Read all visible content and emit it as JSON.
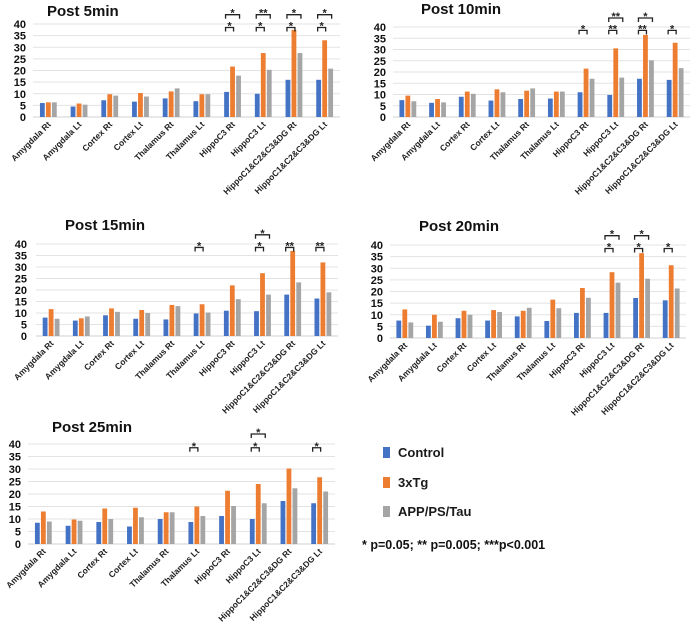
{
  "legend": [
    {
      "name": "Control",
      "color": "#4472C4"
    },
    {
      "name": "3xTg",
      "color": "#ED7D31"
    },
    {
      "name": "APP/PS/Tau",
      "color": "#A5A5A5"
    }
  ],
  "footnote": "*  p=0.05; ** p=0.005; ***p<0.001",
  "chart_data": [
    {
      "type": "bar",
      "title": "Post 5min",
      "ylim": [
        0,
        40
      ],
      "yticks": [
        0,
        5,
        10,
        15,
        20,
        25,
        30,
        35,
        40
      ],
      "grid": true,
      "categories": [
        "Amygdala Rt",
        "Amygdala Lt",
        "Cortex Rt",
        "Cortex Lt",
        "Thalamus Rt",
        "Thalamus Lt",
        "HippoC3 Rt",
        "HippoC3 Lt",
        "HippoC1&C2&C3&DG Rt",
        "HippoC1&C2&C3&DG Lt"
      ],
      "series": [
        {
          "name": "Control",
          "values": [
            6,
            4.5,
            7.2,
            6.6,
            8,
            6.8,
            10.8,
            10,
            16,
            16
          ]
        },
        {
          "name": "3xTg",
          "values": [
            6.3,
            5.8,
            9.8,
            10.3,
            11,
            9.8,
            21.7,
            27.5,
            37.5,
            33
          ]
        },
        {
          "name": "APP/PS/Tau",
          "values": [
            6.3,
            5.3,
            9.2,
            8.8,
            12.3,
            9.8,
            17.8,
            20.3,
            27.5,
            20.8
          ]
        }
      ],
      "significance": [
        {
          "category": 6,
          "pair": "Control-3xTg",
          "label": "*"
        },
        {
          "category": 6,
          "pair": "Control-APP/PS/Tau",
          "label": "*"
        },
        {
          "category": 7,
          "pair": "Control-3xTg",
          "label": "*"
        },
        {
          "category": 7,
          "pair": "Control-APP/PS/Tau",
          "label": "**"
        },
        {
          "category": 8,
          "pair": "Control-3xTg",
          "label": "*"
        },
        {
          "category": 8,
          "pair": "Control-APP/PS/Tau",
          "label": "*"
        },
        {
          "category": 9,
          "pair": "Control-3xTg",
          "label": "*"
        },
        {
          "category": 9,
          "pair": "Control-APP/PS/Tau",
          "label": "*"
        }
      ]
    },
    {
      "type": "bar",
      "title": "Post 10min",
      "ylim": [
        0,
        40
      ],
      "yticks": [
        0,
        5,
        10,
        15,
        20,
        25,
        30,
        35,
        40
      ],
      "grid": true,
      "categories": [
        "Amygdala Rt",
        "Amygdala Lt",
        "Cortex Rt",
        "Cortex Lt",
        "Thalamus Rt",
        "Thalamus Lt",
        "HippoC3 Rt",
        "HippoC3 Lt",
        "HippoC1&C2&C3&DG Rt",
        "HippoC1&C2&C3&DG Lt"
      ],
      "series": [
        {
          "name": "Control",
          "values": [
            7.5,
            6.3,
            9,
            7.3,
            8,
            8.2,
            11,
            9.8,
            17,
            16.5
          ]
        },
        {
          "name": "3xTg",
          "values": [
            9.5,
            8,
            11.3,
            12.3,
            11.7,
            11.3,
            21.5,
            30.5,
            36.5,
            33
          ]
        },
        {
          "name": "APP/PS/Tau",
          "values": [
            7,
            6.5,
            10.3,
            11,
            12.7,
            11.3,
            17,
            17.5,
            25.2,
            21.7
          ]
        }
      ],
      "significance": [
        {
          "category": 6,
          "pair": "Control-3xTg",
          "label": "*"
        },
        {
          "category": 7,
          "pair": "Control-3xTg",
          "label": "**"
        },
        {
          "category": 7,
          "pair": "Control-APP/PS/Tau",
          "label": "**"
        },
        {
          "category": 8,
          "pair": "Control-3xTg",
          "label": "**"
        },
        {
          "category": 8,
          "pair": "Control-APP/PS/Tau",
          "label": "*"
        },
        {
          "category": 9,
          "pair": "Control-3xTg",
          "label": "*"
        }
      ]
    },
    {
      "type": "bar",
      "title": "Post 15min",
      "ylim": [
        0,
        40
      ],
      "yticks": [
        0,
        5,
        10,
        15,
        20,
        25,
        30,
        35,
        40
      ],
      "grid": true,
      "categories": [
        "Amygdala Rt",
        "Amygdala Lt",
        "Cortex Rt",
        "Cortex Lt",
        "Thalamus Rt",
        "Thalamus Lt",
        "HippoC3 Rt",
        "HippoC3 Lt",
        "HippoC1&C2&C3&DG Rt",
        "HippoC1&C2&C3&DG Lt"
      ],
      "series": [
        {
          "name": "Control",
          "values": [
            8,
            6.7,
            9,
            7.5,
            7.2,
            9.8,
            11,
            10.8,
            18,
            16.3
          ]
        },
        {
          "name": "3xTg",
          "values": [
            11.7,
            7.7,
            12,
            11.3,
            13.5,
            13.8,
            22,
            27.3,
            37,
            32
          ]
        },
        {
          "name": "APP/PS/Tau",
          "values": [
            7.5,
            8.5,
            10.5,
            10,
            13,
            10.2,
            16,
            18,
            23.3,
            19
          ]
        }
      ],
      "significance": [
        {
          "category": 5,
          "pair": "Control-3xTg",
          "label": "*"
        },
        {
          "category": 7,
          "pair": "Control-3xTg",
          "label": "*"
        },
        {
          "category": 7,
          "pair": "Control-APP/PS/Tau",
          "label": "*"
        },
        {
          "category": 8,
          "pair": "Control-3xTg",
          "label": "**"
        },
        {
          "category": 9,
          "pair": "Control-3xTg",
          "label": "**"
        }
      ]
    },
    {
      "type": "bar",
      "title": "Post 20min",
      "ylim": [
        0,
        40
      ],
      "yticks": [
        0,
        5,
        10,
        15,
        20,
        25,
        30,
        35,
        40
      ],
      "grid": true,
      "categories": [
        "Amygdala Rt",
        "Amygdala Lt",
        "Cortex Rt",
        "Cortex Lt",
        "Thalamus Rt",
        "Thalamus Lt",
        "HippoC3 Rt",
        "HippoC3 Lt",
        "HippoC1&C2&C3&DG Rt",
        "HippoC1&C2&C3&DG Lt"
      ],
      "series": [
        {
          "name": "Control",
          "values": [
            7.5,
            5.3,
            8.5,
            7.5,
            9.3,
            7.3,
            10.8,
            10.8,
            17.2,
            16.2
          ]
        },
        {
          "name": "3xTg",
          "values": [
            12.3,
            10,
            11.7,
            12,
            11.7,
            16.5,
            21.5,
            28.3,
            36.5,
            31.3
          ]
        },
        {
          "name": "APP/PS/Tau",
          "values": [
            6.7,
            7,
            10,
            11.2,
            13,
            12.8,
            17.3,
            23.8,
            25.5,
            21.3
          ]
        }
      ],
      "significance": [
        {
          "category": 7,
          "pair": "Control-3xTg",
          "label": "*"
        },
        {
          "category": 7,
          "pair": "Control-APP/PS/Tau",
          "label": "*"
        },
        {
          "category": 8,
          "pair": "Control-3xTg",
          "label": "*"
        },
        {
          "category": 8,
          "pair": "Control-APP/PS/Tau",
          "label": "*"
        },
        {
          "category": 9,
          "pair": "Control-3xTg",
          "label": "*"
        }
      ]
    },
    {
      "type": "bar",
      "title": "Post 25min",
      "ylim": [
        0,
        40
      ],
      "yticks": [
        0,
        5,
        10,
        15,
        20,
        25,
        30,
        35,
        40
      ],
      "grid": true,
      "categories": [
        "Amygdala Rt",
        "Amygdala Lt",
        "Cortex Rt",
        "Cortex Lt",
        "Thalamus Rt",
        "Thalamus Lt",
        "HippoC3 Rt",
        "HippoC3 Lt",
        "HippoC1&C2&C3&DG Rt",
        "HippoC1&C2&C3&DG Lt"
      ],
      "series": [
        {
          "name": "Control",
          "values": [
            8.5,
            7.3,
            8.8,
            7,
            10,
            8.8,
            11.2,
            10,
            17.2,
            16.3
          ]
        },
        {
          "name": "3xTg",
          "values": [
            13,
            9.8,
            14.2,
            14.5,
            12.7,
            15,
            21.3,
            24,
            30.2,
            26.7
          ]
        },
        {
          "name": "APP/PS/Tau",
          "values": [
            9,
            9.3,
            10,
            10.7,
            12.7,
            11.2,
            15.2,
            16.3,
            22.3,
            21
          ]
        }
      ],
      "significance": [
        {
          "category": 5,
          "pair": "Control-3xTg",
          "label": "*"
        },
        {
          "category": 7,
          "pair": "Control-3xTg",
          "label": "*"
        },
        {
          "category": 7,
          "pair": "Control-APP/PS/Tau",
          "label": "*"
        },
        {
          "category": 9,
          "pair": "Control-3xTg",
          "label": "*"
        }
      ]
    }
  ]
}
